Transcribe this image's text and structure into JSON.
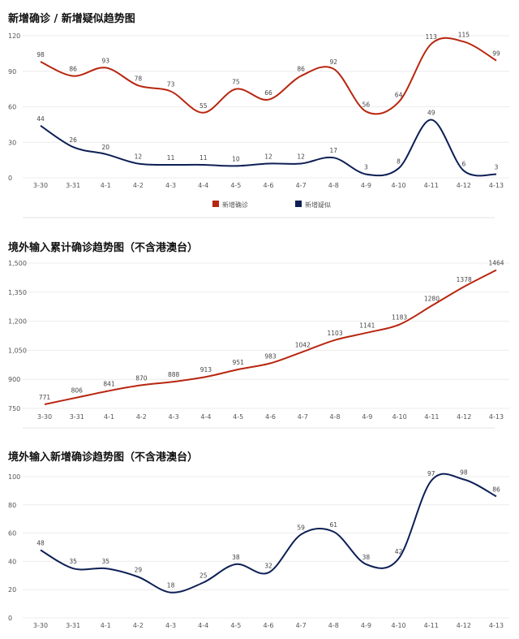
{
  "colors": {
    "red": "#b8260f",
    "navy": "#0d1f55"
  },
  "chart_data": [
    {
      "type": "line",
      "title": "新增确诊 / 新增疑似趋势图",
      "categories": [
        "3-30",
        "3-31",
        "4-1",
        "4-2",
        "4-3",
        "4-4",
        "4-5",
        "4-6",
        "4-7",
        "4-8",
        "4-9",
        "4-10",
        "4-11",
        "4-12",
        "4-13"
      ],
      "series": [
        {
          "name": "新增确诊",
          "color": "#b8260f",
          "values": [
            98,
            86,
            93,
            78,
            73,
            55,
            75,
            66,
            86,
            92,
            56,
            64,
            113,
            115,
            99
          ]
        },
        {
          "name": "新增疑似",
          "color": "#0d1f55",
          "values": [
            44,
            26,
            20,
            12,
            11,
            11,
            10,
            12,
            12,
            17,
            3,
            8,
            49,
            6,
            3
          ]
        }
      ],
      "yticks": [
        "0",
        "30",
        "60",
        "90",
        "120"
      ],
      "ylim": [
        0,
        120
      ],
      "legend": "bottom-center",
      "grid": true
    },
    {
      "type": "line",
      "title": "境外输入累计确诊趋势图（不含港澳台）",
      "categories": [
        "3-30",
        "3-31",
        "4-1",
        "4-2",
        "4-3",
        "4-4",
        "4-5",
        "4-6",
        "4-7",
        "4-8",
        "4-9",
        "4-10",
        "4-11",
        "4-12",
        "4-13"
      ],
      "series": [
        {
          "color": "#b8260f",
          "values": [
            771,
            806,
            841,
            870,
            888,
            913,
            951,
            983,
            1042,
            1103,
            1141,
            1183,
            1280,
            1378,
            1464
          ]
        }
      ],
      "yticks": [
        "750",
        "900",
        "1,050",
        "1,200",
        "1,350",
        "1,500"
      ],
      "ylim": [
        750,
        1500
      ],
      "grid": true
    },
    {
      "type": "line",
      "title": "境外输入新增确诊趋势图（不含港澳台）",
      "categories": [
        "3-30",
        "3-31",
        "4-1",
        "4-2",
        "4-3",
        "4-4",
        "4-5",
        "4-6",
        "4-7",
        "4-8",
        "4-9",
        "4-10",
        "4-11",
        "4-12",
        "4-13"
      ],
      "series": [
        {
          "color": "#0d1f55",
          "values": [
            48,
            35,
            35,
            29,
            18,
            25,
            38,
            32,
            59,
            61,
            38,
            42,
            97,
            98,
            86
          ]
        }
      ],
      "yticks": [
        "0",
        "20",
        "40",
        "60",
        "80",
        "100"
      ],
      "ylim": [
        0,
        100
      ],
      "grid": true
    }
  ]
}
